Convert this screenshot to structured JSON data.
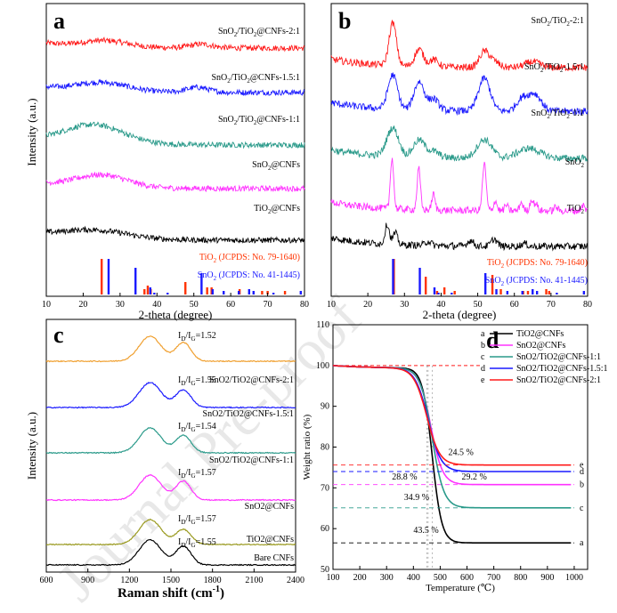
{
  "figure": {
    "watermark": "Journal Pre-proof"
  },
  "chart_data": [
    {
      "panel": "a",
      "type": "line",
      "xlabel": "2-theta (degree)",
      "ylabel": "Intensity (a.u.)",
      "xlim": [
        10,
        80
      ],
      "xticks": [
        10,
        20,
        30,
        40,
        50,
        60,
        70,
        80
      ],
      "series": [
        {
          "name": "SnO2/TiO2@CNFs-2:1",
          "label_main": "SnO",
          "label_sub1": "2",
          "label_mid": "/TiO",
          "label_sub2": "2",
          "label_tail": "@CNFs-2:1",
          "color": "#ff1a1a",
          "peaks": [
            {
              "x": 26,
              "h": 0.5,
              "w": 6
            },
            {
              "x": 52,
              "h": 0.3,
              "w": 3
            }
          ]
        },
        {
          "name": "SnO2/TiO2@CNFs-1.5:1",
          "label_main": "SnO",
          "label_sub1": "2",
          "label_mid": "/TiO",
          "label_sub2": "2",
          "label_tail": "@CNFs-1.5:1",
          "color": "#1a1aff",
          "peaks": [
            {
              "x": 25,
              "h": 0.7,
              "w": 7
            },
            {
              "x": 51,
              "h": 0.4,
              "w": 3
            }
          ]
        },
        {
          "name": "SnO2/TiO2@CNFs-1:1",
          "label_main": "SnO",
          "label_sub1": "2",
          "label_mid": "/TiO",
          "label_sub2": "2",
          "label_tail": "@CNFs-1:1",
          "color": "#2a9a8a",
          "peaks": [
            {
              "x": 23,
              "h": 1.5,
              "w": 8
            }
          ]
        },
        {
          "name": "SnO2@CNFs",
          "label_main": "SnO",
          "label_sub1": "2",
          "label_mid": "@CNFs",
          "label_sub2": "",
          "label_tail": "",
          "color": "#ff33ff",
          "peaks": [
            {
              "x": 25,
              "h": 1.0,
              "w": 7
            }
          ]
        },
        {
          "name": "TiO2@CNFs",
          "label_main": "TiO",
          "label_sub1": "2",
          "label_mid": "@CNFs",
          "label_sub2": "",
          "label_tail": "",
          "color": "#000000",
          "peaks": [
            {
              "x": 23,
              "h": 0.7,
              "w": 9
            }
          ]
        }
      ],
      "references": [
        {
          "name": "TiO2 (JCPDS: No. 79-1640)",
          "label_main": "TiO",
          "label_sub": "2",
          "label_tail": " (JCPDS: No. 79-1640)",
          "color": "#ff3300",
          "lines": [
            [
              25.3,
              1.0
            ],
            [
              36.9,
              0.15
            ],
            [
              37.8,
              0.25
            ],
            [
              38.6,
              0.15
            ],
            [
              48.0,
              0.35
            ],
            [
              53.9,
              0.2
            ],
            [
              55.1,
              0.2
            ],
            [
              62.7,
              0.15
            ],
            [
              68.8,
              0.1
            ],
            [
              70.3,
              0.1
            ],
            [
              75.0,
              0.1
            ]
          ]
        },
        {
          "name": "SnO2 (JCPDS: No. 41-1445)",
          "label_main": "SnO",
          "label_sub": "2",
          "label_tail": " (JCPDS: No. 41-1445)",
          "color": "#1a1aff",
          "lines": [
            [
              26.6,
              1.0
            ],
            [
              33.9,
              0.75
            ],
            [
              37.9,
              0.2
            ],
            [
              39.0,
              0.05
            ],
            [
              42.6,
              0.05
            ],
            [
              51.8,
              0.6
            ],
            [
              54.8,
              0.15
            ],
            [
              57.8,
              0.1
            ],
            [
              61.9,
              0.1
            ],
            [
              64.7,
              0.15
            ],
            [
              65.9,
              0.1
            ],
            [
              71.3,
              0.05
            ],
            [
              78.7,
              0.1
            ]
          ]
        }
      ]
    },
    {
      "panel": "b",
      "type": "line",
      "xlabel": "2-theta (degree)",
      "ylabel": "",
      "xlim": [
        10,
        80
      ],
      "xticks": [
        10,
        20,
        30,
        40,
        50,
        60,
        70,
        80
      ],
      "series": [
        {
          "name": "SnO2/TiO2-2:1",
          "label_main": "SnO",
          "label_sub1": "2",
          "label_mid": "/TiO",
          "label_sub2": "2",
          "label_tail": "-2:1",
          "color": "#ff1a1a",
          "peaks": [
            {
              "x": 26.8,
              "h": 3.0,
              "w": 1.0
            },
            {
              "x": 34.0,
              "h": 1.2,
              "w": 1.2
            },
            {
              "x": 38.0,
              "h": 0.5,
              "w": 1.2
            },
            {
              "x": 51.8,
              "h": 1.1,
              "w": 1.3
            },
            {
              "x": 54.5,
              "h": 0.4,
              "w": 1.3
            },
            {
              "x": 65,
              "h": 0.4,
              "w": 2
            }
          ]
        },
        {
          "name": "SnO2/TiO2-1.5:1",
          "label_main": "SnO",
          "label_sub1": "2",
          "label_mid": "/TiO",
          "label_sub2": "2",
          "label_tail": "-1.5:1",
          "color": "#1a1aff",
          "peaks": [
            {
              "x": 26.8,
              "h": 2.4,
              "w": 1.3
            },
            {
              "x": 34.0,
              "h": 2.0,
              "w": 1.4
            },
            {
              "x": 38.0,
              "h": 0.8,
              "w": 1.3
            },
            {
              "x": 51.8,
              "h": 2.3,
              "w": 1.6
            },
            {
              "x": 62,
              "h": 0.8,
              "w": 1.5
            },
            {
              "x": 65.5,
              "h": 1.2,
              "w": 1.8
            }
          ]
        },
        {
          "name": "SnO2/TiO2-1:1",
          "label_main": "SnO",
          "label_sub1": "2",
          "label_mid": "/TiO",
          "label_sub2": "2",
          "label_tail": "-1:1",
          "color": "#2a9a8a",
          "peaks": [
            {
              "x": 26.8,
              "h": 2.0,
              "w": 1.6
            },
            {
              "x": 34.0,
              "h": 1.2,
              "w": 1.6
            },
            {
              "x": 38.0,
              "h": 0.4,
              "w": 1.5
            },
            {
              "x": 51.8,
              "h": 1.3,
              "w": 2.0
            },
            {
              "x": 64,
              "h": 0.7,
              "w": 3.0
            }
          ]
        },
        {
          "name": "SnO2",
          "label_main": "SnO",
          "label_sub1": "2",
          "label_mid": "",
          "label_sub2": "",
          "label_tail": "",
          "color": "#ff33ff",
          "peaks": [
            {
              "x": 26.6,
              "h": 3.6,
              "w": 0.45
            },
            {
              "x": 33.9,
              "h": 2.9,
              "w": 0.45
            },
            {
              "x": 37.9,
              "h": 1.1,
              "w": 0.45
            },
            {
              "x": 51.8,
              "h": 3.3,
              "w": 0.5
            },
            {
              "x": 54.8,
              "h": 0.7,
              "w": 0.45
            },
            {
              "x": 57.8,
              "h": 0.4,
              "w": 0.45
            },
            {
              "x": 61.9,
              "h": 0.6,
              "w": 0.45
            },
            {
              "x": 64.7,
              "h": 0.8,
              "w": 0.45
            },
            {
              "x": 65.9,
              "h": 0.5,
              "w": 0.45
            },
            {
              "x": 71.3,
              "h": 0.3,
              "w": 0.45
            },
            {
              "x": 78.7,
              "h": 0.4,
              "w": 0.45
            }
          ]
        },
        {
          "name": "TiO2",
          "label_main": "TiO",
          "label_sub1": "2",
          "label_mid": "",
          "label_sub2": "",
          "label_tail": "",
          "color": "#000000",
          "peaks": [
            {
              "x": 25.3,
              "h": 1.4,
              "w": 0.6
            },
            {
              "x": 27.5,
              "h": 0.8,
              "w": 0.6
            },
            {
              "x": 36.5,
              "h": 0.3,
              "w": 0.8
            },
            {
              "x": 48.0,
              "h": 0.4,
              "w": 0.8
            },
            {
              "x": 54.5,
              "h": 0.5,
              "w": 0.8
            },
            {
              "x": 62.7,
              "h": 0.2,
              "w": 0.8
            }
          ]
        }
      ],
      "references": [
        {
          "name": "TiO2 (JCPDS: No. 79-1640)",
          "label_main": "TiO",
          "label_sub": "2",
          "label_tail": " (JCPDS: No. 79-1640)",
          "color": "#ff3300",
          "lines": [
            [
              27.4,
              1.0
            ],
            [
              36.1,
              0.5
            ],
            [
              39.2,
              0.1
            ],
            [
              41.2,
              0.2
            ],
            [
              44.0,
              0.1
            ],
            [
              54.3,
              0.55
            ],
            [
              56.6,
              0.15
            ],
            [
              62.7,
              0.1
            ],
            [
              64.0,
              0.1
            ],
            [
              69.0,
              0.15
            ],
            [
              69.8,
              0.1
            ]
          ]
        },
        {
          "name": "SnO2 (JCPDS: No. 41-1445)",
          "label_main": "SnO",
          "label_sub": "2",
          "label_tail": " (JCPDS: No. 41-1445)",
          "color": "#1a1aff",
          "lines": [
            [
              26.6,
              1.0
            ],
            [
              33.9,
              0.75
            ],
            [
              37.9,
              0.2
            ],
            [
              39.0,
              0.05
            ],
            [
              42.6,
              0.05
            ],
            [
              51.8,
              0.6
            ],
            [
              54.8,
              0.15
            ],
            [
              57.8,
              0.1
            ],
            [
              61.9,
              0.1
            ],
            [
              64.7,
              0.15
            ],
            [
              65.9,
              0.1
            ],
            [
              71.3,
              0.05
            ],
            [
              78.7,
              0.1
            ]
          ]
        }
      ]
    },
    {
      "panel": "c",
      "type": "line",
      "xlabel_main": "Raman shift (cm",
      "xlabel_sup": "-1",
      "xlabel_tail": ")",
      "ylabel": "Intensity (a.u.)",
      "xlim": [
        600,
        2400
      ],
      "xticks": [
        600,
        900,
        1200,
        1500,
        1800,
        2100,
        2400
      ],
      "series": [
        {
          "name": "SnO2/TiO2@CNFs-2:1",
          "ratio": 1.52,
          "ratio_text": "=1.52",
          "color": "#f0a030",
          "hD": 1.0,
          "hG": 0.75
        },
        {
          "name": "SnO2/TiO2@CNFs-1.5:1",
          "ratio": 1.55,
          "ratio_text": "=1.55",
          "color": "#1a1aff",
          "hD": 1.0,
          "hG": 0.7
        },
        {
          "name": "SnO2/TiO2@CNFs-1:1",
          "ratio": 1.54,
          "ratio_text": "=1.54",
          "color": "#2a9a8a",
          "hD": 1.0,
          "hG": 0.7
        },
        {
          "name": "SnO2@CNFs",
          "ratio": 1.57,
          "ratio_text": "=1.57",
          "color": "#ff33ff",
          "hD": 1.0,
          "hG": 0.75
        },
        {
          "name": "TiO2@CNFs",
          "ratio": 1.57,
          "ratio_text": "=1.57",
          "color": "#9a9a20",
          "hD": 1.0,
          "hG": 0.6
        },
        {
          "name": "Bare CNFs",
          "ratio": 1.55,
          "ratio_text": "=1.55",
          "color": "#000000",
          "hD": 1.0,
          "hG": 0.75
        }
      ],
      "ratio_prefix": "I",
      "ratio_sub_d": "D",
      "ratio_sep": "/I",
      "ratio_sub_g": "G"
    },
    {
      "panel": "d",
      "type": "line",
      "xlabel": "Temperature (℃)",
      "ylabel": "Weight ratio (%)",
      "xlim": [
        100,
        1050
      ],
      "ylim": [
        50,
        110
      ],
      "xticks": [
        100,
        200,
        300,
        400,
        500,
        600,
        700,
        800,
        900,
        1000
      ],
      "yticks": [
        50,
        60,
        70,
        80,
        90,
        100,
        110
      ],
      "legend_position": "top-right",
      "series": [
        {
          "key": "a",
          "name": "TiO2@CNFs",
          "color": "#000000",
          "final": 56.5,
          "tmid": 470,
          "k": 18
        },
        {
          "key": "b",
          "name": "SnO2@CNFs",
          "color": "#ff33ff",
          "final": 70.8,
          "tmid": 465,
          "k": 22
        },
        {
          "key": "c",
          "name": "SnO2/TiO2@CNFs-1:1",
          "color": "#2a9a8a",
          "final": 65.1,
          "tmid": 470,
          "k": 22
        },
        {
          "key": "d",
          "name": "SnO2/TiO2@CNFs-1.5:1",
          "color": "#1a1aff",
          "final": 74.0,
          "tmid": 455,
          "k": 24
        },
        {
          "key": "e",
          "name": "SnO2/TiO2@CNFs-2:1",
          "color": "#ff1a1a",
          "final": 75.6,
          "tmid": 450,
          "k": 24
        }
      ],
      "annotations": [
        "28.8 %",
        "24.5 %",
        "29.2 %",
        "34.9 %",
        "43.5 %"
      ]
    }
  ]
}
